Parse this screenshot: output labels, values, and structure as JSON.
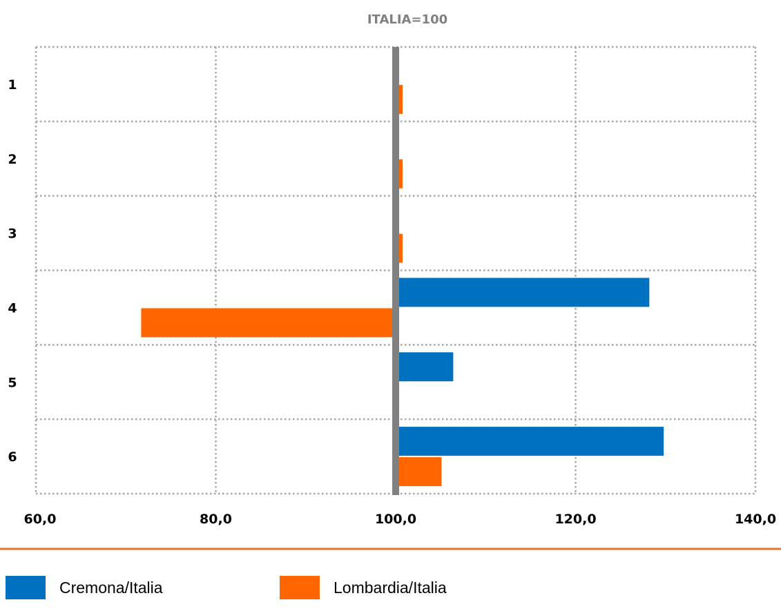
{
  "colors": {
    "series_a": "#0070c0",
    "series_b": "#ff6600",
    "axis_line": "#808080",
    "grid": "#a6a6a6",
    "separator": "#e8712c",
    "title_color": "#808080"
  },
  "chart_data": {
    "type": "bar",
    "orientation": "horizontal",
    "title": "ITALIA=100",
    "categories": [
      "1",
      "2",
      "3",
      "4",
      "5",
      "6"
    ],
    "baseline": 100,
    "xlim": [
      60,
      140
    ],
    "xticks": [
      "60,0",
      "80,0",
      "100,0",
      "120,0",
      "140,0"
    ],
    "xtick_values": [
      60,
      80,
      100,
      120,
      140
    ],
    "grid": true,
    "legend_position": "bottom",
    "series": [
      {
        "name": "Cremona/Italia",
        "values": [
          null,
          null,
          null,
          128.2,
          106.4,
          129.8
        ]
      },
      {
        "name": "Lombardia/Italia",
        "values": [
          100.3,
          100.4,
          100.3,
          71.7,
          null,
          105.1
        ]
      }
    ]
  },
  "legend": {
    "items": [
      {
        "label": "Cremona/Italia"
      },
      {
        "label": "Lombardia/Italia"
      }
    ]
  }
}
